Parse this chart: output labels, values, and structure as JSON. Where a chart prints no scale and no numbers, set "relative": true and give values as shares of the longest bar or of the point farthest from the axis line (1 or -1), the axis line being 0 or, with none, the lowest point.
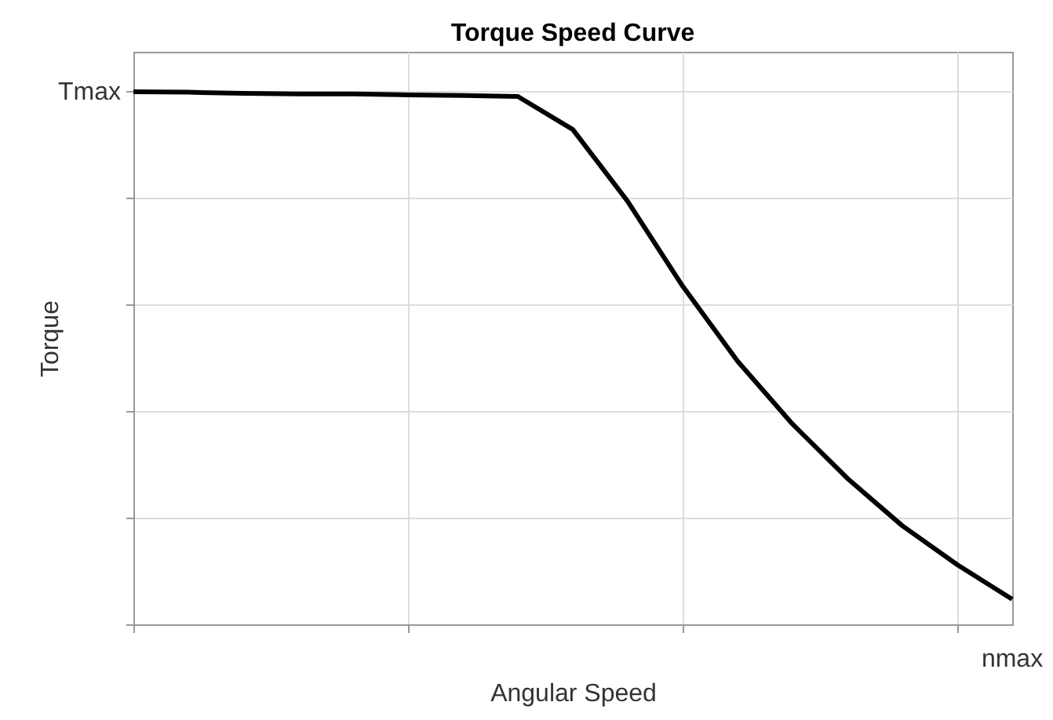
{
  "chart_data": {
    "type": "line",
    "title": "Torque Speed Curve",
    "xlabel": "Angular Speed",
    "ylabel": "Torque",
    "relative": true,
    "categories": [
      null,
      null,
      null,
      null,
      null,
      null,
      null,
      null,
      null,
      null,
      null,
      null,
      null,
      null,
      null,
      null,
      null
    ],
    "series": [
      {
        "color": "#000000",
        "values": [
          1,
          0.999,
          0.997,
          0.996,
          0.996,
          0.994,
          0.993,
          0.991,
          0.929,
          0.794,
          0.635,
          0.494,
          0.376,
          0.274,
          0.185,
          0.112,
          0.047
        ]
      }
    ],
    "annotations": [
      "Tmax",
      "nmax"
    ],
    "grid": true,
    "marker": "none",
    "line_style": "solid"
  }
}
